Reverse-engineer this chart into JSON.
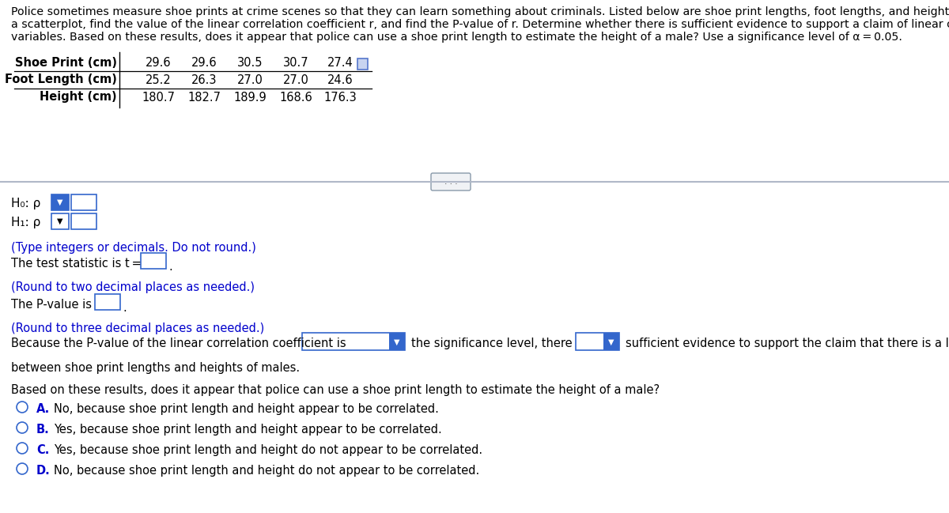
{
  "background_color": "#ffffff",
  "intro_line1": "Police sometimes measure shoe prints at crime scenes so that they can learn something about criminals. Listed below are shoe print lengths, foot lengths, and heights of males. Construct",
  "intro_line2": "a scatterplot, find the value of the linear correlation coefficient r, and find the P-value of r. Determine whether there is sufficient evidence to support a claim of linear correlation between the two",
  "intro_line3": "variables. Based on these results, does it appear that police can use a shoe print length to estimate the height of a male? Use a significance level of α = 0.05.",
  "table_row_labels": [
    "Shoe Print (cm)",
    "Foot Length (cm)",
    "Height (cm)"
  ],
  "table_data": [
    [
      "29.6",
      "29.6",
      "30.5",
      "30.7",
      "27.4"
    ],
    [
      "25.2",
      "26.3",
      "27.0",
      "27.0",
      "24.6"
    ],
    [
      "180.7",
      "182.7",
      "189.9",
      "168.6",
      "176.3"
    ]
  ],
  "blue_color": "#0000cc",
  "text_color": "#000000",
  "box_color": "#3366cc",
  "sep_line_color": "#aaaaaa",
  "fs_intro": 10.5,
  "fs_table_label": 10.5,
  "fs_table_data": 10.5,
  "fs_body": 10.5,
  "fs_note": 10.5
}
